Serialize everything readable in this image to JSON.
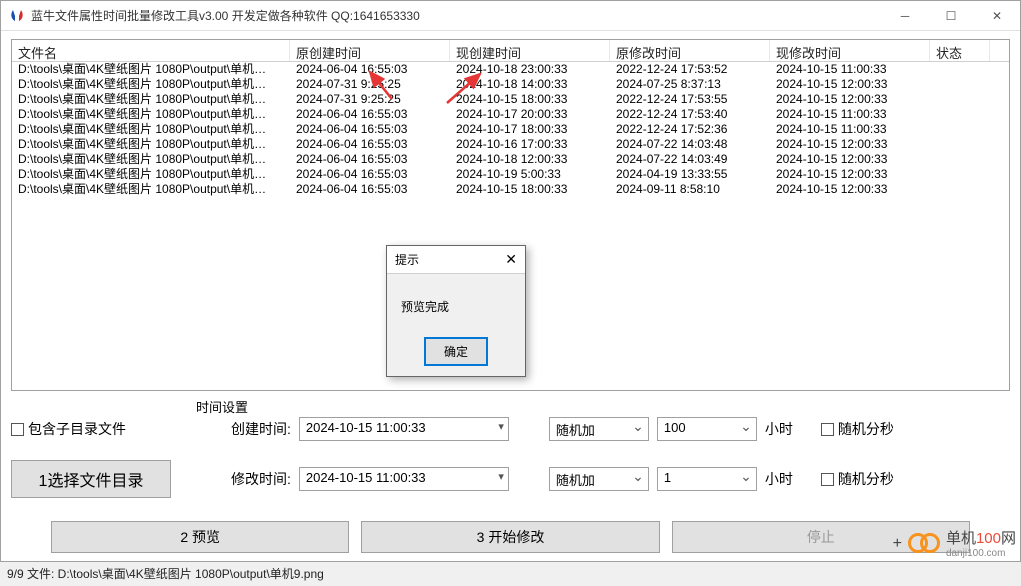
{
  "titlebar": {
    "title": "蓝牛文件属性时间批量修改工具v3.00  开发定做各种软件  QQ:1641653330",
    "icon_colors": {
      "blue": "#1a4fae",
      "red": "#d62c2c"
    }
  },
  "columns": {
    "name": "文件名",
    "orig_create": "原创建时间",
    "new_create": "现创建时间",
    "orig_modify": "原修改时间",
    "new_modify": "现修改时间",
    "status": "状态"
  },
  "rows": [
    {
      "name": "D:\\tools\\桌面\\4K壁纸图片 1080P\\output\\单机…",
      "oc": "2024-06-04 16:55:03",
      "nc": "2024-10-18 23:00:33",
      "om": "2022-12-24 17:53:52",
      "nm": "2024-10-15 11:00:33"
    },
    {
      "name": "D:\\tools\\桌面\\4K壁纸图片 1080P\\output\\单机…",
      "oc": "2024-07-31  9:25:25",
      "nc": "2024-10-18 14:00:33",
      "om": "2024-07-25 8:37:13",
      "nm": "2024-10-15 12:00:33"
    },
    {
      "name": "D:\\tools\\桌面\\4K壁纸图片 1080P\\output\\单机…",
      "oc": "2024-07-31  9:25:25",
      "nc": "2024-10-15 18:00:33",
      "om": "2022-12-24 17:53:55",
      "nm": "2024-10-15 12:00:33"
    },
    {
      "name": "D:\\tools\\桌面\\4K壁纸图片 1080P\\output\\单机…",
      "oc": "2024-06-04 16:55:03",
      "nc": "2024-10-17 20:00:33",
      "om": "2022-12-24 17:53:40",
      "nm": "2024-10-15 11:00:33"
    },
    {
      "name": "D:\\tools\\桌面\\4K壁纸图片 1080P\\output\\单机…",
      "oc": "2024-06-04 16:55:03",
      "nc": "2024-10-17 18:00:33",
      "om": "2022-12-24 17:52:36",
      "nm": "2024-10-15 11:00:33"
    },
    {
      "name": "D:\\tools\\桌面\\4K壁纸图片 1080P\\output\\单机…",
      "oc": "2024-06-04 16:55:03",
      "nc": "2024-10-16 17:00:33",
      "om": "2024-07-22 14:03:48",
      "nm": "2024-10-15 12:00:33"
    },
    {
      "name": "D:\\tools\\桌面\\4K壁纸图片 1080P\\output\\单机…",
      "oc": "2024-06-04 16:55:03",
      "nc": "2024-10-18 12:00:33",
      "om": "2024-07-22 14:03:49",
      "nm": "2024-10-15 12:00:33"
    },
    {
      "name": "D:\\tools\\桌面\\4K壁纸图片 1080P\\output\\单机…",
      "oc": "2024-06-04 16:55:03",
      "nc": "2024-10-19  5:00:33",
      "om": "2024-04-19 13:33:55",
      "nm": "2024-10-15 12:00:33"
    },
    {
      "name": "D:\\tools\\桌面\\4K壁纸图片 1080P\\output\\单机…",
      "oc": "2024-06-04 16:55:03",
      "nc": "2024-10-15 18:00:33",
      "om": "2024-09-11 8:58:10",
      "nm": "2024-10-15 12:00:33"
    }
  ],
  "settings": {
    "group_label": "时间设置",
    "include_subdir": "包含子目录文件",
    "select_dir_btn": "1选择文件目录",
    "create_label": "创建时间:",
    "create_value": "2024-10-15 11:00:33",
    "modify_label": "修改时间:",
    "modify_value": "2024-10-15 11:00:33",
    "random_add": "随机加",
    "hours_1": "100",
    "hours_2": "1",
    "hour_unit": "小时",
    "random_minsec": "随机分秒"
  },
  "buttons": {
    "preview": "2 预览",
    "start": "3 开始修改",
    "stop": "停止"
  },
  "dialog": {
    "title": "提示",
    "message": "预览完成",
    "ok": "确定"
  },
  "statusbar": "9/9 文件:  D:\\tools\\桌面\\4K壁纸图片 1080P\\output\\单机9.png",
  "watermark": {
    "text1": "单机",
    "text2": "100",
    "text3": "网",
    "sub": "danji100.com"
  },
  "arrows": {
    "color": "#e53535"
  }
}
